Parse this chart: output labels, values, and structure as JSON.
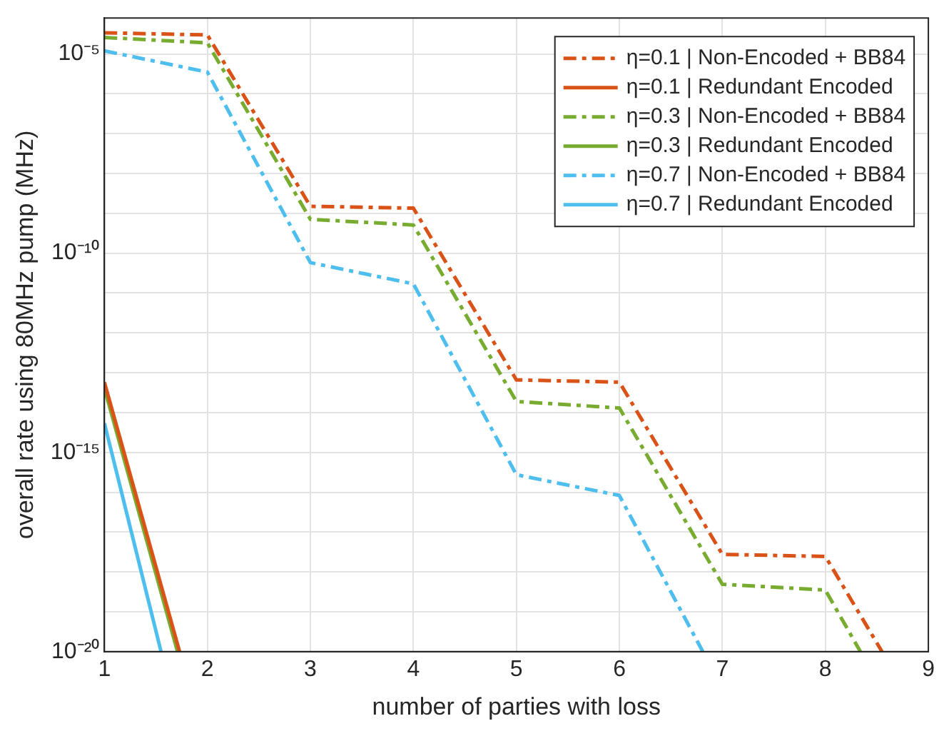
{
  "chart_data": {
    "type": "line",
    "xlabel": "number of parties with loss",
    "ylabel": "overall rate using 80MHz pump (MHz)",
    "xlim": [
      1,
      9
    ],
    "xticks": [
      1,
      2,
      3,
      4,
      5,
      6,
      7,
      8,
      9
    ],
    "ylim": [
      1e-20,
      8e-05
    ],
    "yticks": [
      {
        "value": 1e-20,
        "label": "10⁻²⁰"
      },
      {
        "value": 1e-19,
        "label": null
      },
      {
        "value": 1e-18,
        "label": null
      },
      {
        "value": 1e-17,
        "label": null
      },
      {
        "value": 1e-16,
        "label": null
      },
      {
        "value": 1e-15,
        "label": "10⁻¹⁵"
      },
      {
        "value": 1e-14,
        "label": null
      },
      {
        "value": 1e-13,
        "label": null
      },
      {
        "value": 1e-12,
        "label": null
      },
      {
        "value": 1e-11,
        "label": null
      },
      {
        "value": 1e-10,
        "label": "10⁻¹⁰"
      },
      {
        "value": 1e-09,
        "label": null
      },
      {
        "value": 1e-08,
        "label": null
      },
      {
        "value": 1e-07,
        "label": null
      },
      {
        "value": 1e-06,
        "label": null
      },
      {
        "value": 1e-05,
        "label": "10⁻⁵"
      }
    ],
    "log": "y",
    "grid": true,
    "legend": "top right",
    "marker": "none",
    "series": [
      {
        "name": "η=0.1 | Non-Encoded + BB84",
        "color": "#d95319",
        "line_style": "dashed",
        "x": [
          1,
          2,
          3,
          4,
          5,
          6,
          7,
          8,
          8.55
        ],
        "values": [
          3.4e-05,
          3e-05,
          1.5e-09,
          1.35e-09,
          6.6e-14,
          5.8e-14,
          2.75e-18,
          2.45e-18,
          1e-20
        ]
      },
      {
        "name": "η=0.1 | Redundant Encoded",
        "color": "#d95319",
        "line_style": "solid",
        "x": [
          1,
          1.73
        ],
        "values": [
          5.8e-14,
          1e-20
        ]
      },
      {
        "name": "η=0.3 | Non-Encoded + BB84",
        "color": "#77ac30",
        "line_style": "dashed",
        "x": [
          1,
          2,
          3,
          4,
          5,
          6,
          7,
          8,
          8.34
        ],
        "values": [
          2.6e-05,
          1.9e-05,
          7.1e-10,
          5.1e-10,
          1.9e-14,
          1.3e-14,
          4.9e-19,
          3.5e-19,
          1e-20
        ]
      },
      {
        "name": "η=0.3 | Redundant Encoded",
        "color": "#77ac30",
        "line_style": "solid",
        "x": [
          1,
          1.71
        ],
        "values": [
          4.1e-14,
          1e-20
        ]
      },
      {
        "name": "η=0.7 | Non-Encoded + BB84",
        "color": "#4dbeee",
        "line_style": "dashed",
        "x": [
          1,
          2,
          3,
          4,
          5,
          6,
          6.81
        ],
        "values": [
          1.2e-05,
          3.5e-06,
          5.8e-11,
          1.7e-11,
          2.75e-16,
          8.3e-17,
          1e-20
        ]
      },
      {
        "name": "η=0.7 | Redundant Encoded",
        "color": "#4dbeee",
        "line_style": "solid",
        "x": [
          1,
          1.55
        ],
        "values": [
          5.4e-15,
          1e-20
        ]
      }
    ]
  }
}
